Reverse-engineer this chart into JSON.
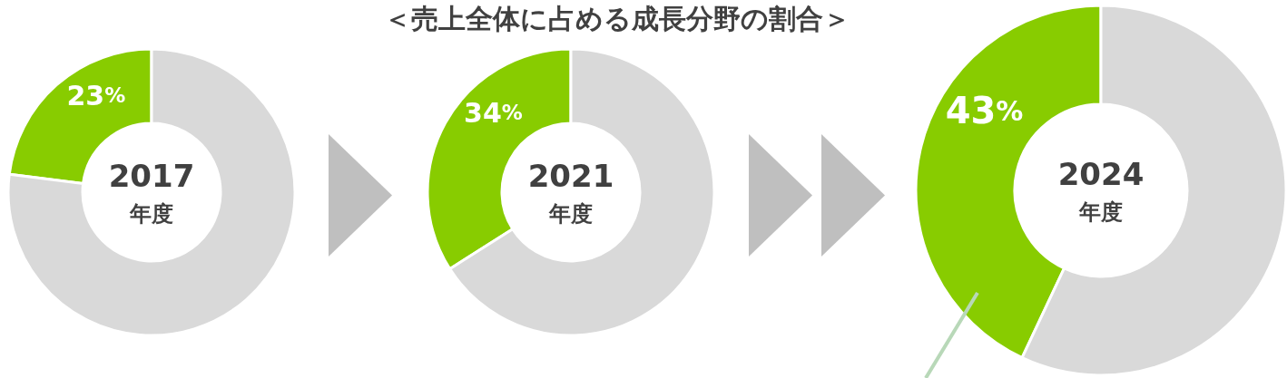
{
  "chart_data": [
    {
      "type": "other",
      "title": "＜売上全体に占める成長分野の割合＞"
    },
    {
      "type": "donut",
      "categories": [
        null,
        null
      ],
      "values": [
        23,
        77
      ],
      "colors": [
        "#88cc00",
        "#d9d9d9"
      ],
      "value_labels": [
        "23%",
        null
      ],
      "annotations": [
        "2017",
        "年度"
      ]
    },
    {
      "type": "donut",
      "categories": [
        null,
        null
      ],
      "values": [
        34,
        66
      ],
      "colors": [
        "#88cc00",
        "#d9d9d9"
      ],
      "value_labels": [
        "34%",
        null
      ],
      "annotations": [
        "2021",
        "年度"
      ]
    },
    {
      "type": "donut",
      "categories": [
        null,
        null
      ],
      "values": [
        43,
        57
      ],
      "colors": [
        "#88cc00",
        "#d9d9d9"
      ],
      "value_labels": [
        "43%",
        null
      ],
      "annotations": [
        "2024",
        "年度"
      ]
    }
  ]
}
